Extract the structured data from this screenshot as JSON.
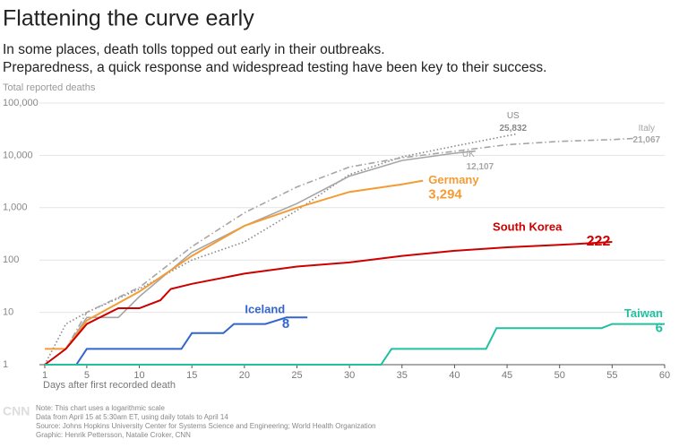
{
  "chart_data": {
    "type": "line",
    "title": "Flattening the curve early",
    "subtitle": [
      "In some places, death tolls topped out early in their outbreaks.",
      "Preparedness, a quick response and widespread testing have been key to their success."
    ],
    "y_label": "Total reported deaths",
    "x_label": "Days after first recorded death",
    "log_y": true,
    "grid": true,
    "xlim": [
      1,
      60
    ],
    "ylim": [
      1,
      100000
    ],
    "xticks": [
      1,
      5,
      10,
      15,
      20,
      25,
      30,
      35,
      40,
      45,
      50,
      55,
      60
    ],
    "yticks": [
      1,
      10,
      100,
      {
        "value": 1000,
        "label": "1,000"
      },
      {
        "value": 10000,
        "label": "10,000"
      },
      {
        "value": 100000,
        "label": "100,000"
      }
    ],
    "series": [
      {
        "name": "US",
        "color": "#888888",
        "dash": "dotted",
        "x": [
          1,
          3,
          5,
          10,
          15,
          20,
          25,
          30,
          35,
          40,
          46
        ],
        "values": [
          1,
          6,
          10,
          28,
          100,
          222,
          890,
          4300,
          9400,
          15000,
          25832
        ],
        "value_labels": [
          null,
          null,
          null,
          null,
          null,
          null,
          null,
          null,
          null,
          null,
          "25,832"
        ]
      },
      {
        "name": "Italy",
        "color": "#a6a6a6",
        "dash": "dashdot",
        "x": [
          1,
          3,
          5,
          10,
          15,
          20,
          25,
          30,
          35,
          40,
          45,
          50,
          55,
          57
        ],
        "values": [
          1,
          2,
          10,
          30,
          180,
          800,
          2500,
          6000,
          9000,
          12000,
          16000,
          18500,
          20000,
          21067
        ],
        "value_labels": [
          null,
          null,
          null,
          null,
          null,
          null,
          null,
          null,
          null,
          null,
          null,
          null,
          null,
          "21,067"
        ]
      },
      {
        "name": "UK",
        "color": "#a6a6a6",
        "dash": "solid",
        "x": [
          1,
          3,
          5,
          8,
          10,
          15,
          20,
          25,
          30,
          35,
          40,
          42
        ],
        "values": [
          1,
          2,
          8,
          8,
          20,
          140,
          450,
          1200,
          4000,
          8000,
          11000,
          12107
        ],
        "value_labels": [
          null,
          null,
          null,
          null,
          null,
          null,
          null,
          null,
          null,
          null,
          null,
          "12,107"
        ]
      },
      {
        "name": "Germany",
        "color": "#f39c35",
        "dash": "solid",
        "x": [
          1,
          3,
          5,
          10,
          15,
          20,
          25,
          30,
          35,
          37
        ],
        "values": [
          2,
          2,
          7,
          25,
          120,
          450,
          1000,
          2000,
          2800,
          3294
        ],
        "value_labels": [
          null,
          null,
          null,
          null,
          null,
          null,
          null,
          null,
          null,
          "3,294"
        ]
      },
      {
        "name": "South Korea",
        "color": "#cc0000",
        "dash": "solid",
        "x": [
          1,
          3,
          5,
          8,
          10,
          12,
          13,
          15,
          20,
          25,
          30,
          35,
          40,
          45,
          50,
          55
        ],
        "values": [
          1,
          2,
          6,
          12,
          12,
          17,
          28,
          35,
          55,
          75,
          90,
          120,
          150,
          175,
          195,
          222
        ]
      },
      {
        "name": "Iceland",
        "color": "#3366cc",
        "dash": "solid",
        "x": [
          1,
          4,
          5,
          14,
          15,
          18,
          19,
          22,
          24,
          26
        ],
        "values": [
          1,
          1,
          2,
          2,
          4,
          4,
          6,
          6,
          8,
          8
        ]
      },
      {
        "name": "Taiwan",
        "color": "#20c0a0",
        "dash": "solid",
        "x": [
          1,
          33,
          34,
          43,
          44,
          54,
          55,
          60
        ],
        "values": [
          1,
          1,
          2,
          2,
          5,
          5,
          6,
          6
        ]
      }
    ],
    "notes": [
      "Note: This chart uses a logarithmic scale",
      "Data from April 15 at 5:30am ET, using daily totals to April 14",
      "Source: Johns Hopkins University Center for Systems Science and Engineering; World Health Organization",
      "Graphic: Henrik Pettersson, Natalie Croker, CNN"
    ],
    "logo": "CNN"
  }
}
